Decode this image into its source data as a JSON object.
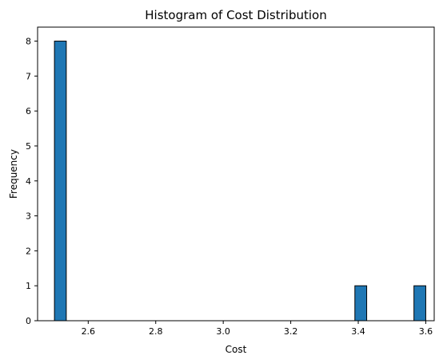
{
  "chart_data": {
    "type": "bar",
    "title": "Histogram of Cost Distribution",
    "xlabel": "Cost",
    "ylabel": "Frequency",
    "xlim": [
      2.45,
      3.625
    ],
    "ylim": [
      0,
      8.4
    ],
    "xticks": [
      "2.6",
      "2.8",
      "3.0",
      "3.2",
      "3.4",
      "3.6"
    ],
    "xtick_values": [
      2.6,
      2.8,
      3.0,
      3.2,
      3.4,
      3.6
    ],
    "yticks": [
      "0",
      "1",
      "2",
      "3",
      "4",
      "5",
      "6",
      "7",
      "8"
    ],
    "ytick_values": [
      0,
      1,
      2,
      3,
      4,
      5,
      6,
      7,
      8
    ],
    "bins": [
      {
        "start": 2.5,
        "end": 2.535,
        "count": 8
      },
      {
        "start": 3.39,
        "end": 3.425,
        "count": 1
      },
      {
        "start": 3.565,
        "end": 3.6,
        "count": 1
      }
    ],
    "grid": false,
    "colors": {
      "bar": "#1f77b4",
      "edge": "#000000"
    }
  }
}
